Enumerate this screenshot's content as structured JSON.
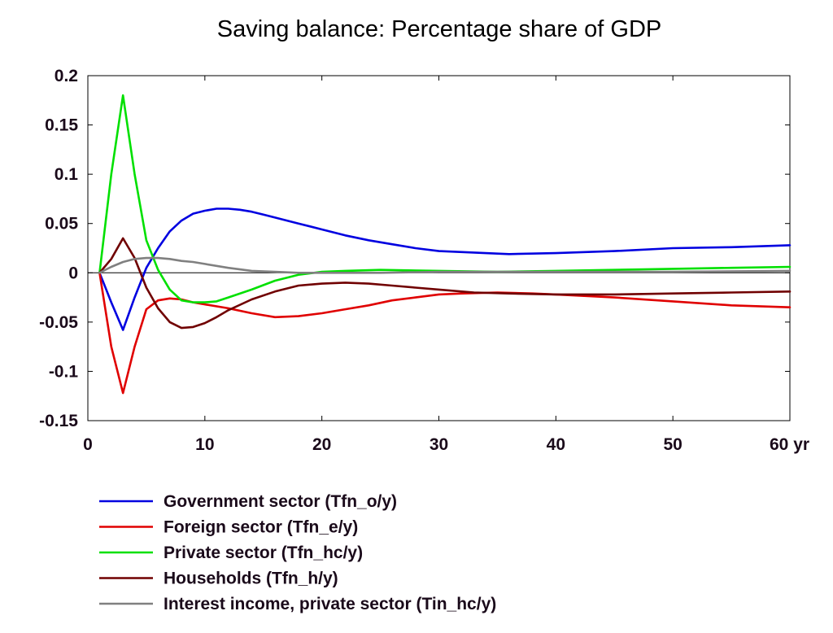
{
  "chart_data": {
    "type": "line",
    "title": "Saving balance: Percentage share of GDP",
    "xlabel": "",
    "ylabel": "",
    "x_unit_label": "yr",
    "xlim": [
      0,
      60
    ],
    "ylim": [
      -0.15,
      0.2
    ],
    "x_ticks": [
      0,
      10,
      20,
      30,
      40,
      50,
      60
    ],
    "x_tick_labels": [
      "0",
      "10",
      "20",
      "30",
      "40",
      "50",
      "60 yr"
    ],
    "y_ticks": [
      -0.15,
      -0.1,
      -0.05,
      0,
      0.05,
      0.1,
      0.15,
      0.2
    ],
    "y_tick_labels": [
      "-0.15",
      "-0.1",
      "-0.05",
      "0",
      "0.05",
      "0.1",
      "0.15",
      "0.2"
    ],
    "grid": false,
    "zero_line": true,
    "legend_position": "bottom",
    "series": [
      {
        "name": "Government sector (Tfn_o/y)",
        "color": "#0000e0",
        "points": [
          [
            1,
            0
          ],
          [
            2,
            -0.03
          ],
          [
            3,
            -0.058
          ],
          [
            4,
            -0.025
          ],
          [
            5,
            0.005
          ],
          [
            6,
            0.025
          ],
          [
            7,
            0.042
          ],
          [
            8,
            0.053
          ],
          [
            9,
            0.06
          ],
          [
            10,
            0.063
          ],
          [
            11,
            0.065
          ],
          [
            12,
            0.065
          ],
          [
            13,
            0.064
          ],
          [
            14,
            0.062
          ],
          [
            15,
            0.059
          ],
          [
            16,
            0.056
          ],
          [
            18,
            0.05
          ],
          [
            20,
            0.044
          ],
          [
            22,
            0.038
          ],
          [
            24,
            0.033
          ],
          [
            26,
            0.029
          ],
          [
            28,
            0.025
          ],
          [
            30,
            0.022
          ],
          [
            32,
            0.021
          ],
          [
            34,
            0.02
          ],
          [
            36,
            0.019
          ],
          [
            40,
            0.02
          ],
          [
            45,
            0.022
          ],
          [
            50,
            0.025
          ],
          [
            55,
            0.026
          ],
          [
            60,
            0.028
          ]
        ]
      },
      {
        "name": "Foreign sector (Tfn_e/y)",
        "color": "#e00000",
        "points": [
          [
            1,
            0
          ],
          [
            2,
            -0.075
          ],
          [
            3,
            -0.122
          ],
          [
            4,
            -0.075
          ],
          [
            5,
            -0.037
          ],
          [
            6,
            -0.028
          ],
          [
            7,
            -0.026
          ],
          [
            8,
            -0.027
          ],
          [
            9,
            -0.03
          ],
          [
            10,
            -0.032
          ],
          [
            12,
            -0.036
          ],
          [
            14,
            -0.041
          ],
          [
            16,
            -0.045
          ],
          [
            18,
            -0.044
          ],
          [
            20,
            -0.041
          ],
          [
            22,
            -0.037
          ],
          [
            24,
            -0.033
          ],
          [
            26,
            -0.028
          ],
          [
            28,
            -0.025
          ],
          [
            30,
            -0.022
          ],
          [
            32,
            -0.021
          ],
          [
            35,
            -0.02
          ],
          [
            38,
            -0.021
          ],
          [
            40,
            -0.022
          ],
          [
            45,
            -0.025
          ],
          [
            50,
            -0.029
          ],
          [
            55,
            -0.033
          ],
          [
            60,
            -0.035
          ]
        ]
      },
      {
        "name": "Private sector (Tfn_hc/y)",
        "color": "#00e000",
        "points": [
          [
            1,
            0
          ],
          [
            2,
            0.1
          ],
          [
            3,
            0.18
          ],
          [
            4,
            0.1
          ],
          [
            5,
            0.033
          ],
          [
            6,
            0.003
          ],
          [
            7,
            -0.017
          ],
          [
            8,
            -0.028
          ],
          [
            9,
            -0.03
          ],
          [
            10,
            -0.03
          ],
          [
            11,
            -0.029
          ],
          [
            12,
            -0.025
          ],
          [
            14,
            -0.017
          ],
          [
            16,
            -0.008
          ],
          [
            18,
            -0.002
          ],
          [
            20,
            0.001
          ],
          [
            22,
            0.002
          ],
          [
            25,
            0.003
          ],
          [
            30,
            0.002
          ],
          [
            35,
            0.001
          ],
          [
            40,
            0.002
          ],
          [
            45,
            0.003
          ],
          [
            50,
            0.004
          ],
          [
            55,
            0.005
          ],
          [
            60,
            0.006
          ]
        ]
      },
      {
        "name": "Households (Tfn_h/y)",
        "color": "#700000",
        "points": [
          [
            1,
            0
          ],
          [
            2,
            0.014
          ],
          [
            3,
            0.035
          ],
          [
            4,
            0.015
          ],
          [
            5,
            -0.015
          ],
          [
            6,
            -0.036
          ],
          [
            7,
            -0.05
          ],
          [
            8,
            -0.056
          ],
          [
            9,
            -0.055
          ],
          [
            10,
            -0.051
          ],
          [
            11,
            -0.045
          ],
          [
            12,
            -0.038
          ],
          [
            14,
            -0.027
          ],
          [
            16,
            -0.019
          ],
          [
            18,
            -0.013
          ],
          [
            20,
            -0.011
          ],
          [
            22,
            -0.01
          ],
          [
            24,
            -0.011
          ],
          [
            26,
            -0.013
          ],
          [
            28,
            -0.015
          ],
          [
            30,
            -0.017
          ],
          [
            33,
            -0.02
          ],
          [
            36,
            -0.021
          ],
          [
            40,
            -0.022
          ],
          [
            45,
            -0.022
          ],
          [
            50,
            -0.021
          ],
          [
            55,
            -0.02
          ],
          [
            60,
            -0.019
          ]
        ]
      },
      {
        "name": "Interest income, private sector (Tin_hc/y)",
        "color": "#808080",
        "points": [
          [
            1,
            0
          ],
          [
            2,
            0.006
          ],
          [
            3,
            0.011
          ],
          [
            4,
            0.014
          ],
          [
            5,
            0.015
          ],
          [
            6,
            0.015
          ],
          [
            7,
            0.014
          ],
          [
            8,
            0.012
          ],
          [
            9,
            0.011
          ],
          [
            10,
            0.009
          ],
          [
            12,
            0.005
          ],
          [
            14,
            0.002
          ],
          [
            16,
            0.001
          ],
          [
            18,
            0
          ],
          [
            20,
            0
          ],
          [
            25,
            0
          ],
          [
            30,
            0.001
          ],
          [
            40,
            0.001
          ],
          [
            50,
            0.001
          ],
          [
            60,
            0.002
          ]
        ]
      }
    ]
  }
}
